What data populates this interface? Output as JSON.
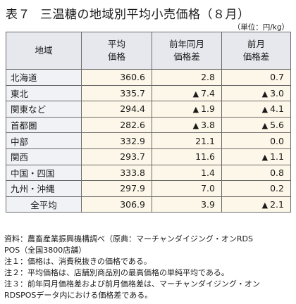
{
  "title": {
    "number": "表７",
    "text": "三温糖の地域別平均小売価格（８月）"
  },
  "unit": "（単位：円/kg）",
  "table": {
    "headers": {
      "region": "地域",
      "avg_line1": "平均",
      "avg_line2": "価格",
      "yoy_line1": "前年同月",
      "yoy_line2": "価格差",
      "mom_line1": "前月",
      "mom_line2": "価格差"
    },
    "negative_marker": "▲",
    "rows": [
      {
        "region": "北海道",
        "avg": "360.6",
        "yoy": "2.8",
        "yoy_neg": false,
        "mom": "0.7",
        "mom_neg": false
      },
      {
        "region": "東北",
        "avg": "335.7",
        "yoy": "7.4",
        "yoy_neg": true,
        "mom": "3.0",
        "mom_neg": true
      },
      {
        "region": "関東など",
        "avg": "294.4",
        "yoy": "1.9",
        "yoy_neg": true,
        "mom": "4.1",
        "mom_neg": true
      },
      {
        "region": "首都圏",
        "avg": "282.6",
        "yoy": "3.8",
        "yoy_neg": true,
        "mom": "5.6",
        "mom_neg": true
      },
      {
        "region": "中部",
        "avg": "332.9",
        "yoy": "21.1",
        "yoy_neg": false,
        "mom": "0.0",
        "mom_neg": false
      },
      {
        "region": "関西",
        "avg": "293.7",
        "yoy": "11.6",
        "yoy_neg": false,
        "mom": "1.1",
        "mom_neg": true
      },
      {
        "region": "中国・四国",
        "avg": "333.8",
        "yoy": "1.4",
        "yoy_neg": false,
        "mom": "0.8",
        "mom_neg": false
      },
      {
        "region": "九州・沖縄",
        "avg": "297.9",
        "yoy": "7.0",
        "yoy_neg": false,
        "mom": "0.2",
        "mom_neg": false
      },
      {
        "region": "全平均",
        "avg": "306.9",
        "yoy": "3.9",
        "yoy_neg": false,
        "mom": "2.1",
        "mom_neg": true
      }
    ]
  },
  "notes": {
    "source_label": "資料：",
    "source_line1": "農畜産業振興機構調べ（原典：マーチャンダイジング・オンRDS",
    "source_line2": "POS（全国3800店舗）",
    "note1_label": "注１：",
    "note1_text": "価格は、消費税抜きの価格である。",
    "note2_label": "注２：",
    "note2_text": "平均価格は、店舗別商品別の最高価格の単純平均である。",
    "note3_label": "注３：",
    "note3_line1": "前年同月価格差および前月価格差は、マーチャンダイジング・オン",
    "note3_line2": "RDSPOSデータ内における価格差である。"
  },
  "colors": {
    "header_bg": "#e6e8ee",
    "region_bg": "#f1f2f6",
    "value_bg": "#fdf7e9",
    "border": "#6b6b6b"
  }
}
